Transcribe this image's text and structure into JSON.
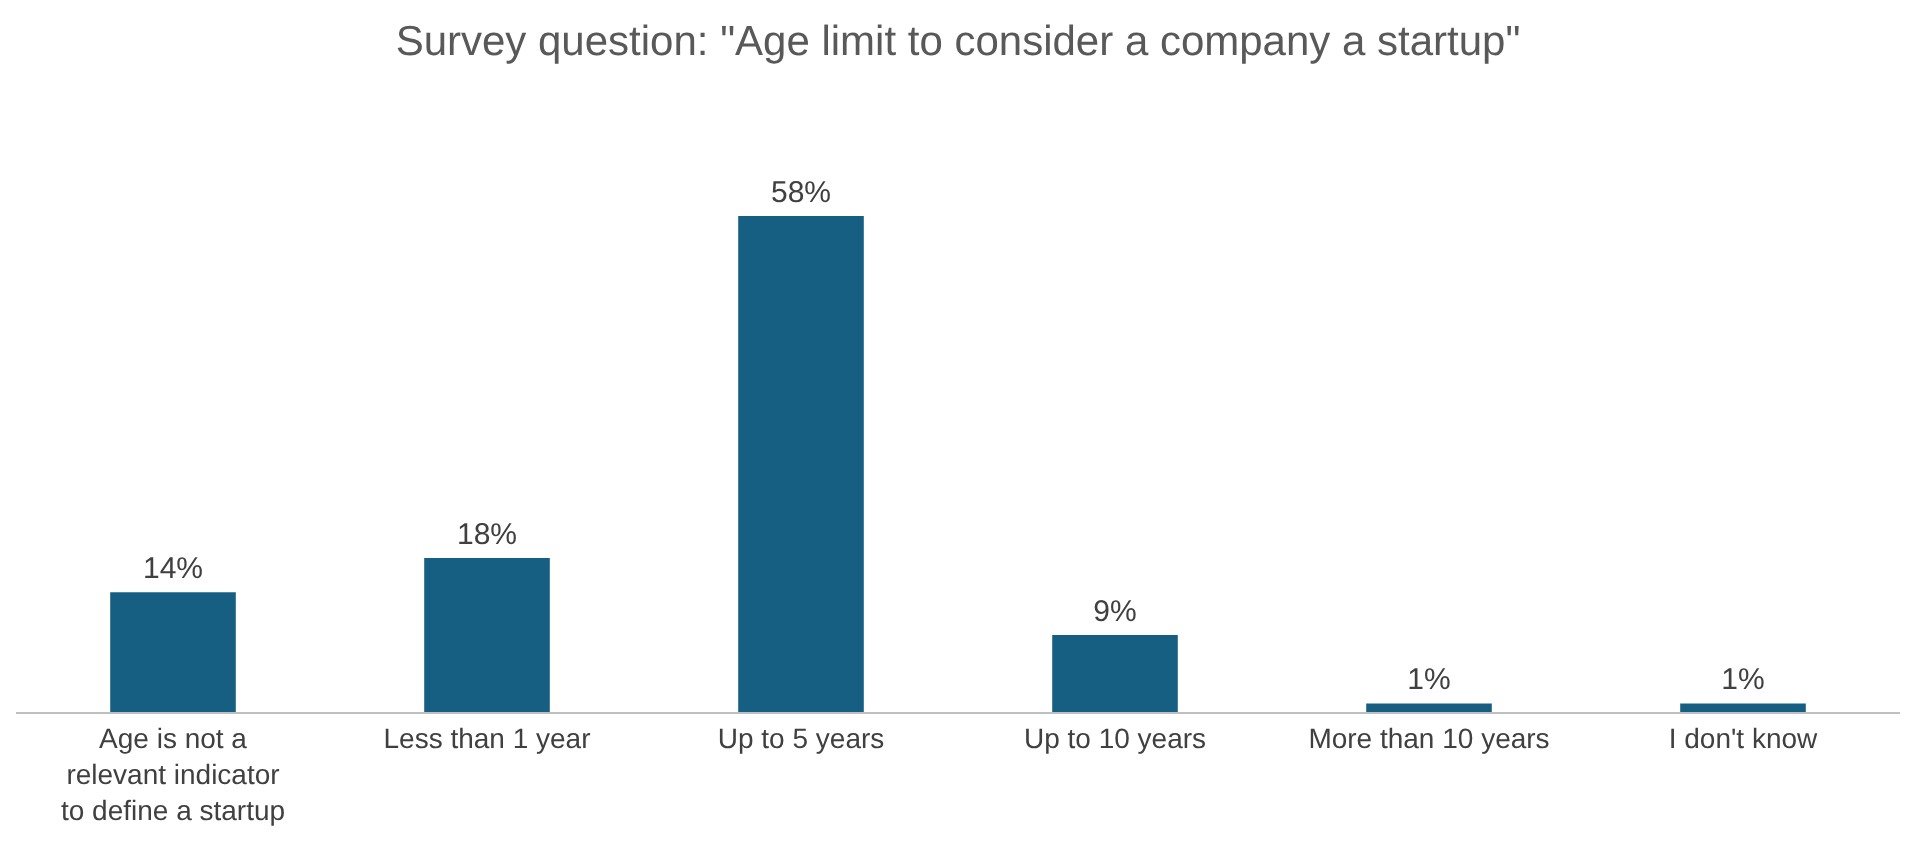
{
  "chart_data": {
    "type": "bar",
    "title": "Survey question: \"Age limit to consider a company a startup\"",
    "categories": [
      "Age is not a relevant indicator to define a startup",
      "Less than 1 year",
      "Up to 5 years",
      "Up to 10 years",
      "More than 10 years",
      "I don't know"
    ],
    "values": [
      14,
      18,
      58,
      9,
      1,
      1
    ],
    "value_labels": [
      "14%",
      "18%",
      "58%",
      "9%",
      "1%",
      "1%"
    ],
    "color": "#165f82"
  }
}
